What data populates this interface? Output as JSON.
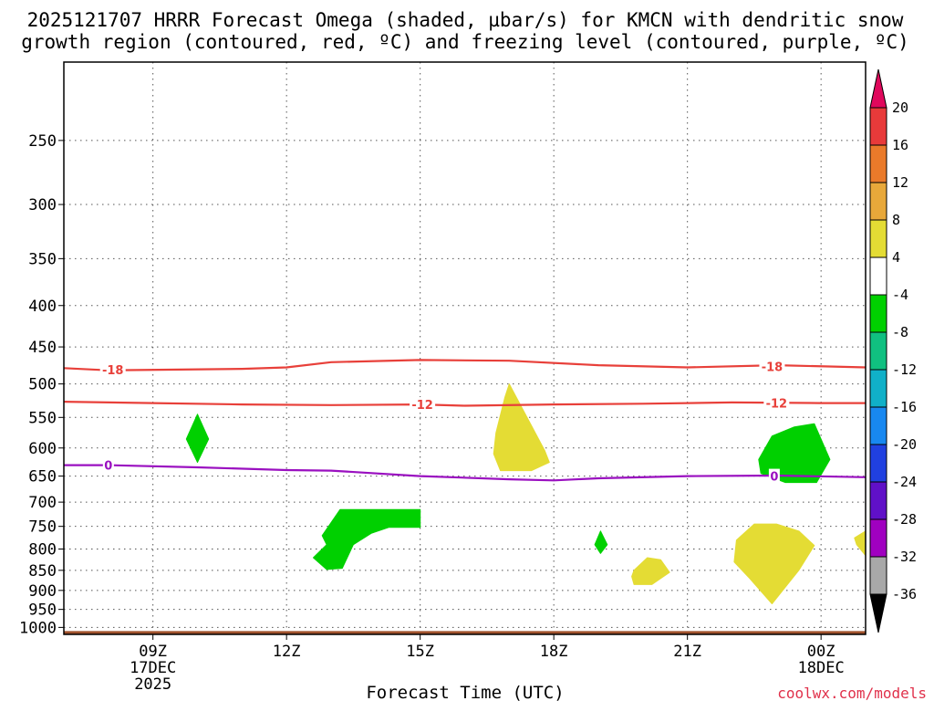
{
  "title": {
    "line1": "2025121707 HRRR Forecast Omega (shaded, µbar/s) for KMCN with dendritic snow",
    "line2": "growth region (contoured, red, ºC) and freezing level (contoured, purple, ºC)"
  },
  "credit": "coolwx.com/models",
  "colors": {
    "omega_positive_light": "#e4dc34",
    "omega_negative": "#00d000",
    "dendritic_contour": "#e8403a",
    "freezing_contour": "#9a10c0",
    "ground": "#a0522d",
    "grid": "#555555"
  },
  "chart_data": {
    "type": "heatmap",
    "title": "2025121707 HRRR Forecast Omega (shaded, µbar/s) for KMCN with dendritic snow growth region (contoured, red, ºC) and freezing level (contoured, purple, ºC)",
    "xlabel": "Forecast Time (UTC)",
    "ylabel": "",
    "x_ticks": [
      {
        "hour": 9,
        "label": "09Z",
        "date": "17DEC",
        "year": "2025"
      },
      {
        "hour": 12,
        "label": "12Z",
        "date": "",
        "year": ""
      },
      {
        "hour": 15,
        "label": "15Z",
        "date": "",
        "year": ""
      },
      {
        "hour": 18,
        "label": "18Z",
        "date": "",
        "year": ""
      },
      {
        "hour": 21,
        "label": "21Z",
        "date": "",
        "year": ""
      },
      {
        "hour": 24,
        "label": "00Z",
        "date": "18DEC",
        "year": ""
      }
    ],
    "xlim": [
      7,
      25
    ],
    "y_scale": "log-pressure (hPa)",
    "y_ticks": [
      250,
      300,
      350,
      400,
      450,
      500,
      550,
      600,
      650,
      700,
      750,
      800,
      850,
      900,
      950,
      1000
    ],
    "ylim": [
      200,
      1020
    ],
    "ground_level_hpa": 1000,
    "colorbar": {
      "units": "µbar/s",
      "levels": [
        20,
        16,
        12,
        8,
        4,
        -4,
        -8,
        -12,
        -16,
        -20,
        -24,
        -28,
        -32,
        -36
      ],
      "colors": [
        "#e0085c",
        "#e83a3a",
        "#ea7a2a",
        "#e8a83a",
        "#e4dc34",
        "#ffffff",
        "#00d000",
        "#10c080",
        "#10b0c8",
        "#1888f0",
        "#2040e0",
        "#6010c8",
        "#a000c0",
        "#a8a8a8",
        "#000000"
      ]
    },
    "contours": [
      {
        "name": "-18",
        "color": "#e8403a",
        "label": "-18",
        "points": [
          [
            7,
            478
          ],
          [
            8,
            481
          ],
          [
            11,
            479
          ],
          [
            12,
            477
          ],
          [
            13,
            470
          ],
          [
            15,
            467
          ],
          [
            17,
            468
          ],
          [
            19,
            474
          ],
          [
            21,
            477
          ],
          [
            23,
            474
          ],
          [
            25,
            477
          ]
        ],
        "label_positions": [
          [
            8.1,
            480
          ],
          [
            22.9,
            476
          ]
        ]
      },
      {
        "name": "-12",
        "color": "#e8403a",
        "label": "-12",
        "points": [
          [
            7,
            526
          ],
          [
            9,
            528
          ],
          [
            11,
            530
          ],
          [
            13,
            531
          ],
          [
            15,
            530
          ],
          [
            16,
            532
          ],
          [
            18,
            530
          ],
          [
            20,
            529
          ],
          [
            22,
            527
          ],
          [
            24,
            528
          ],
          [
            25,
            528
          ]
        ],
        "label_positions": [
          [
            15.05,
            530
          ],
          [
            23.0,
            528
          ]
        ]
      },
      {
        "name": "0",
        "color": "#9a10c0",
        "label": "0",
        "points": [
          [
            7,
            630
          ],
          [
            8,
            630
          ],
          [
            10,
            634
          ],
          [
            12,
            639
          ],
          [
            13,
            640
          ],
          [
            15,
            650
          ],
          [
            17,
            656
          ],
          [
            18,
            658
          ],
          [
            19,
            654
          ],
          [
            21,
            650
          ],
          [
            23,
            649
          ],
          [
            25,
            652
          ]
        ],
        "label_positions": [
          [
            8.0,
            630
          ],
          [
            22.95,
            650
          ]
        ]
      }
    ],
    "shaded_regions": [
      {
        "name": "green-diamond-10Z",
        "omega_range": "-8 to -4",
        "color": "#00d000",
        "points": [
          [
            10.0,
            545
          ],
          [
            10.25,
            585
          ],
          [
            10.0,
            625
          ],
          [
            9.75,
            585
          ]
        ]
      },
      {
        "name": "green-hook-13Z",
        "omega_range": "-8 to -4",
        "color": "#00d000",
        "points": [
          [
            12.8,
            770
          ],
          [
            13.2,
            715
          ],
          [
            15.0,
            715
          ],
          [
            15.0,
            752
          ],
          [
            14.3,
            752
          ],
          [
            13.9,
            765
          ],
          [
            13.5,
            790
          ],
          [
            13.25,
            845
          ],
          [
            12.9,
            848
          ],
          [
            12.6,
            820
          ],
          [
            12.9,
            790
          ]
        ]
      },
      {
        "name": "yellow-17Z",
        "omega_range": "4 to 8",
        "color": "#e4dc34",
        "points": [
          [
            16.7,
            575
          ],
          [
            16.9,
            520
          ],
          [
            17.0,
            500
          ],
          [
            17.4,
            550
          ],
          [
            17.8,
            605
          ],
          [
            17.9,
            625
          ],
          [
            17.5,
            640
          ],
          [
            16.8,
            640
          ],
          [
            16.65,
            610
          ]
        ]
      },
      {
        "name": "green-19Z",
        "omega_range": "-8 to -4",
        "color": "#00d000",
        "points": [
          [
            19.05,
            760
          ],
          [
            19.2,
            790
          ],
          [
            19.05,
            810
          ],
          [
            18.92,
            790
          ]
        ]
      },
      {
        "name": "yellow-20Z",
        "omega_range": "4 to 8",
        "color": "#e4dc34",
        "points": [
          [
            19.8,
            850
          ],
          [
            20.1,
            820
          ],
          [
            20.4,
            825
          ],
          [
            20.6,
            855
          ],
          [
            20.2,
            885
          ],
          [
            19.8,
            885
          ],
          [
            19.75,
            865
          ]
        ]
      },
      {
        "name": "yellow-22Z",
        "omega_range": "4 to 8",
        "color": "#e4dc34",
        "points": [
          [
            22.1,
            780
          ],
          [
            22.5,
            745
          ],
          [
            23.0,
            745
          ],
          [
            23.5,
            760
          ],
          [
            23.85,
            792
          ],
          [
            23.5,
            850
          ],
          [
            22.9,
            935
          ],
          [
            22.4,
            870
          ],
          [
            22.05,
            830
          ]
        ]
      },
      {
        "name": "green-23Z",
        "omega_range": "-8 to -4",
        "color": "#00d000",
        "points": [
          [
            22.6,
            620
          ],
          [
            22.9,
            580
          ],
          [
            23.4,
            565
          ],
          [
            23.85,
            560
          ],
          [
            24.2,
            620
          ],
          [
            23.9,
            662
          ],
          [
            23.2,
            662
          ],
          [
            22.65,
            645
          ]
        ]
      },
      {
        "name": "yellow-edge-01Z",
        "omega_range": "4 to 8",
        "color": "#e4dc34",
        "points": [
          [
            24.75,
            775
          ],
          [
            25.0,
            760
          ],
          [
            25.0,
            815
          ],
          [
            24.8,
            790
          ]
        ]
      }
    ]
  }
}
